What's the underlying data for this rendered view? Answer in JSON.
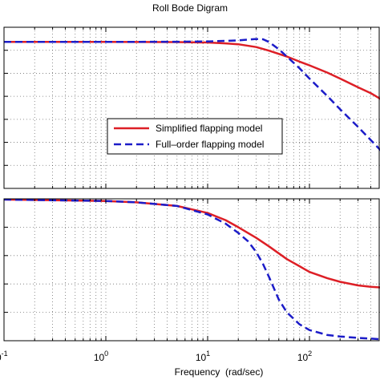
{
  "chart_data": {
    "type": "line",
    "title": "Roll Bode Digram",
    "xlabel": "Frequency  (rad/sec)",
    "xscale": "log",
    "xlim": [
      0.1,
      500
    ],
    "x_tick_labels": [
      {
        "value": 0.1,
        "base": "10",
        "exp": "-1"
      },
      {
        "value": 1,
        "base": "10",
        "exp": "0"
      },
      {
        "value": 10,
        "base": "10",
        "exp": "1"
      },
      {
        "value": 100,
        "base": "10",
        "exp": "2"
      }
    ],
    "grid": true,
    "legend": {
      "placement": "center-right of top panel",
      "entries": [
        {
          "label": "Simplified flapping model",
          "color": "#dd1f26",
          "style": "solid"
        },
        {
          "label": "Full–order flapping model",
          "color": "#1c1cc8",
          "style": "dashed"
        }
      ]
    },
    "panels": [
      {
        "name": "magnitude",
        "ylim": [
          -100,
          10
        ],
        "series": [
          {
            "name": "Simplified flapping model",
            "color": "#dd1f26",
            "style": "solid",
            "x": [
              0.1,
              1,
              5,
              10,
              15,
              20,
              30,
              40,
              60,
              80,
              100,
              150,
              200,
              300,
              400,
              500
            ],
            "y": [
              0,
              0,
              -0.1,
              -0.4,
              -1,
              -1.6,
              -3.5,
              -6,
              -10,
              -13.5,
              -16,
              -21,
              -25,
              -31,
              -35,
              -39
            ]
          },
          {
            "name": "Full–order flapping model",
            "color": "#1c1cc8",
            "style": "dashed",
            "x": [
              0.1,
              1,
              5,
              10,
              20,
              30,
              35,
              40,
              50,
              60,
              80,
              100,
              150,
              200,
              300,
              400,
              500
            ],
            "y": [
              0,
              0,
              0.1,
              0.3,
              1,
              2,
              1.8,
              0,
              -5,
              -10,
              -18,
              -25,
              -37,
              -46,
              -58,
              -67,
              -74
            ]
          }
        ]
      },
      {
        "name": "phase",
        "ylim": [
          -200,
          0
        ],
        "series": [
          {
            "name": "Simplified flapping model",
            "color": "#dd1f26",
            "style": "solid",
            "x": [
              0.1,
              1,
              2,
              5,
              10,
              15,
              20,
              30,
              40,
              60,
              80,
              100,
              150,
              200,
              300,
              400,
              500
            ],
            "y": [
              -1,
              -3,
              -5,
              -10,
              -20,
              -30,
              -40,
              -55,
              -67,
              -85,
              -95,
              -103,
              -112,
              -117,
              -122,
              -124,
              -125
            ]
          },
          {
            "name": "Full–order flapping model",
            "color": "#1c1cc8",
            "style": "dashed",
            "x": [
              0.1,
              1,
              2,
              5,
              10,
              15,
              20,
              25,
              30,
              35,
              40,
              50,
              60,
              80,
              100,
              150,
              200,
              300,
              400,
              500
            ],
            "y": [
              -1,
              -3,
              -5,
              -10,
              -22,
              -35,
              -48,
              -60,
              -75,
              -92,
              -110,
              -142,
              -160,
              -177,
              -185,
              -192,
              -194,
              -196,
              -197,
              -198
            ]
          }
        ]
      }
    ]
  }
}
